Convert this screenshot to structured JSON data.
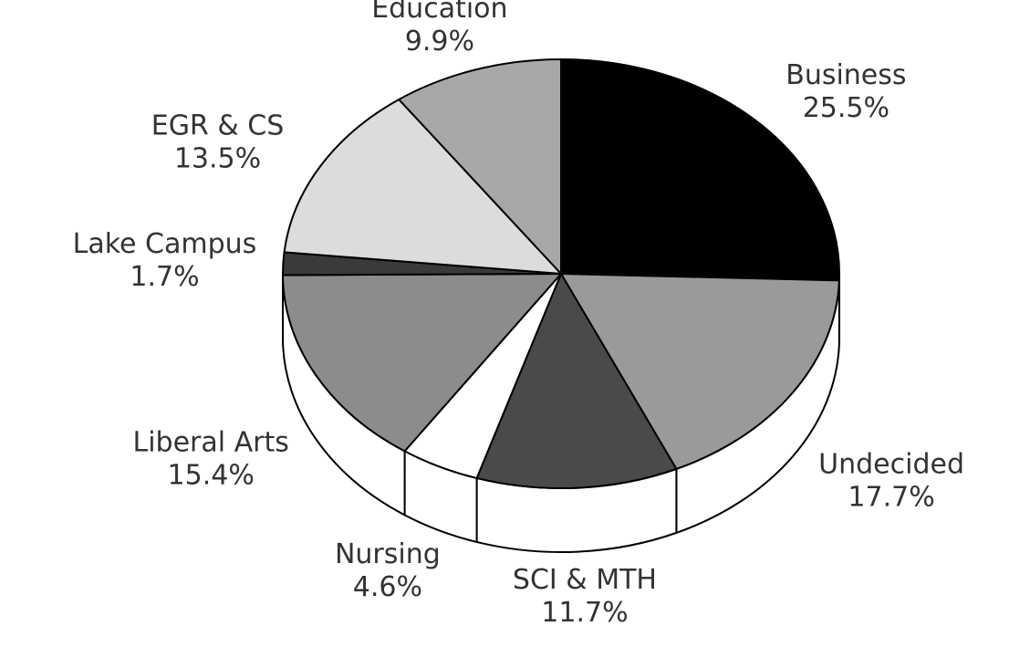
{
  "chart_data": {
    "type": "pie",
    "categories": [
      "Business",
      "Undecided",
      "SCI & MTH",
      "Nursing",
      "Liberal Arts",
      "Lake Campus",
      "EGR & CS",
      "Education"
    ],
    "values": [
      25.5,
      17.7,
      11.7,
      4.6,
      15.4,
      1.7,
      13.5,
      9.9
    ],
    "value_labels": [
      "25.5%",
      "17.7%",
      "11.7%",
      "4.6%",
      "15.4%",
      "1.7%",
      "13.5%",
      "9.9%"
    ],
    "colors": [
      "#000000",
      "#9a9a9a",
      "#4a4a4a",
      "#ffffff",
      "#8c8c8c",
      "#3a3a3a",
      "#dcdcdc",
      "#a8a8a8"
    ]
  }
}
